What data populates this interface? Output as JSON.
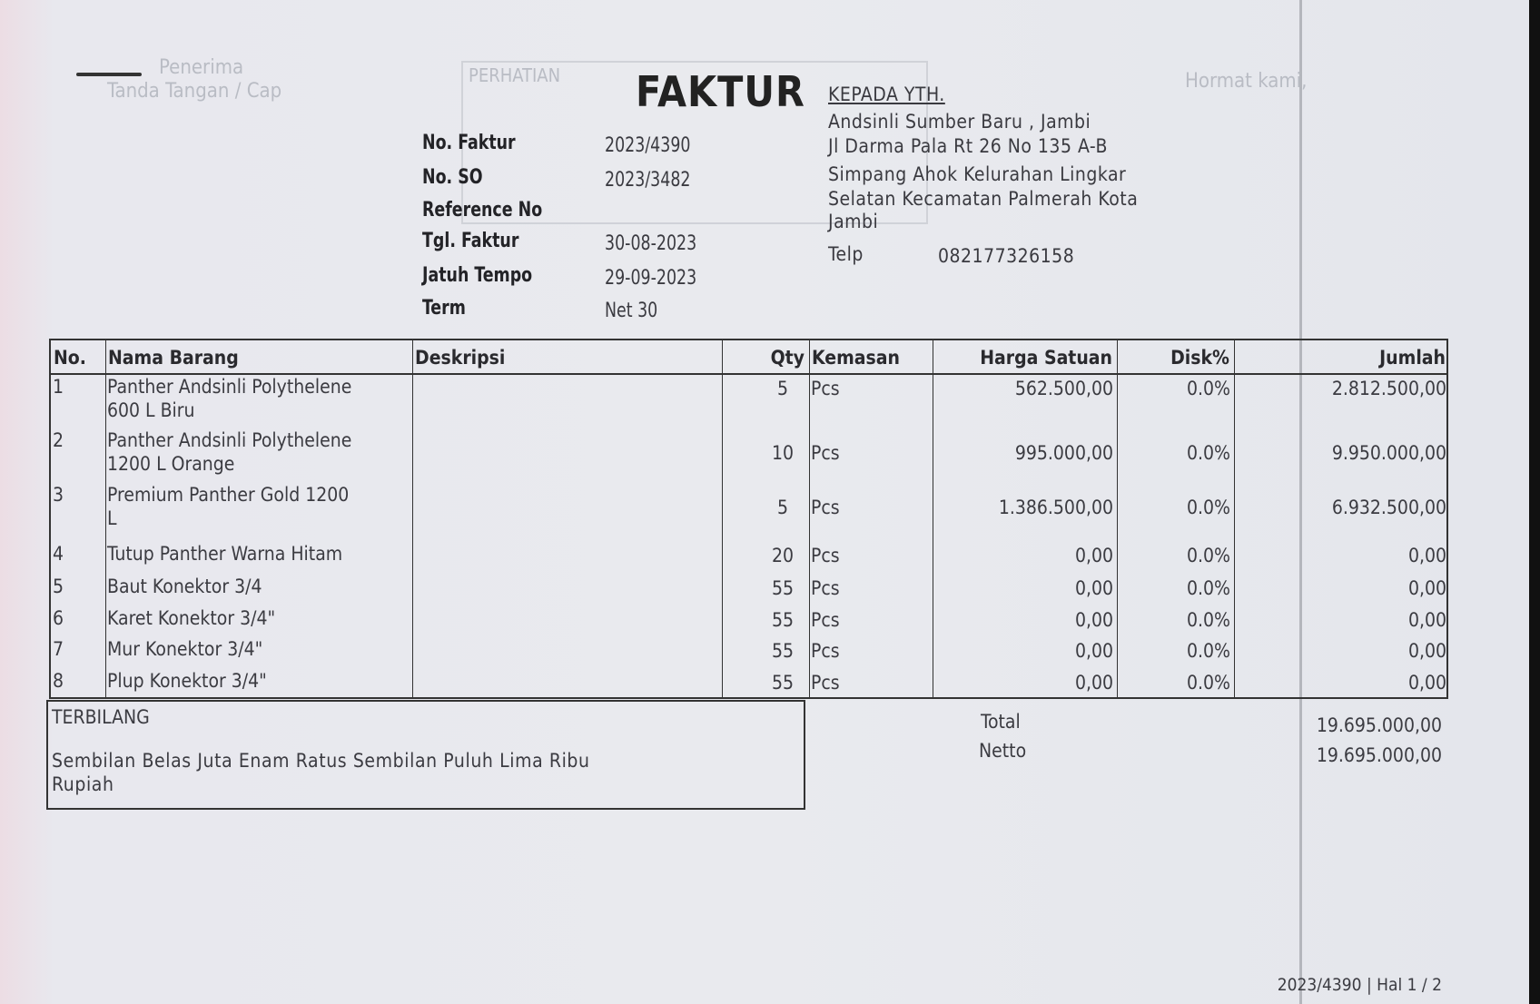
{
  "background_marks": {
    "receiver_label": "Penerima",
    "signature_label": "Tanda Tangan / Cap",
    "notice_label": "PERHATIAN",
    "regards_label": "Hormat kami,"
  },
  "header": {
    "title": "FAKTUR",
    "fields": [
      {
        "label": "No. Faktur",
        "value": "2023/4390"
      },
      {
        "label": "No. SO",
        "value": "2023/3482"
      },
      {
        "label": "Reference No",
        "value": ""
      },
      {
        "label": "Tgl. Faktur",
        "value": "30-08-2023"
      },
      {
        "label": "Jatuh Tempo",
        "value": "29-09-2023"
      },
      {
        "label": "Term",
        "value": "Net 30"
      }
    ]
  },
  "recipient": {
    "heading": "KEPADA YTH.",
    "lines": [
      "Andsinli Sumber Baru , Jambi",
      "Jl Darma Pala Rt 26 No 135 A-B",
      "Simpang Ahok Kelurahan Lingkar",
      "Selatan Kecamatan Palmerah Kota",
      "Jambi"
    ],
    "phone_label": "Telp",
    "phone": "082177326158"
  },
  "table": {
    "columns": [
      "No.",
      "Nama Barang",
      "Deskripsi",
      "Qty",
      "Kemasan",
      "Harga Satuan",
      "Disk%",
      "Jumlah"
    ],
    "rows": [
      {
        "no": "1",
        "name1": "Panther Andsinli Polythelene",
        "name2": "600 L Biru",
        "desc": "",
        "qty": "5",
        "unit": "Pcs",
        "price": "562.500,00",
        "disc": "0.0%",
        "total": "2.812.500,00"
      },
      {
        "no": "2",
        "name1": "Panther Andsinli Polythelene",
        "name2": "1200 L Orange",
        "desc": "",
        "qty": "10",
        "unit": "Pcs",
        "price": "995.000,00",
        "disc": "0.0%",
        "total": "9.950.000,00"
      },
      {
        "no": "3",
        "name1": "Premium Panther Gold 1200",
        "name2": "L",
        "desc": "",
        "qty": "5",
        "unit": "Pcs",
        "price": "1.386.500,00",
        "disc": "0.0%",
        "total": "6.932.500,00"
      },
      {
        "no": "4",
        "name1": "Tutup Panther Warna Hitam",
        "name2": "",
        "desc": "",
        "qty": "20",
        "unit": "Pcs",
        "price": "0,00",
        "disc": "0.0%",
        "total": "0,00"
      },
      {
        "no": "5",
        "name1": "Baut Konektor 3/4",
        "name2": "",
        "desc": "",
        "qty": "55",
        "unit": "Pcs",
        "price": "0,00",
        "disc": "0.0%",
        "total": "0,00"
      },
      {
        "no": "6",
        "name1": "Karet Konektor 3/4\"",
        "name2": "",
        "desc": "",
        "qty": "55",
        "unit": "Pcs",
        "price": "0,00",
        "disc": "0.0%",
        "total": "0,00"
      },
      {
        "no": "7",
        "name1": "Mur Konektor 3/4\"",
        "name2": "",
        "desc": "",
        "qty": "55",
        "unit": "Pcs",
        "price": "0,00",
        "disc": "0.0%",
        "total": "0,00"
      },
      {
        "no": "8",
        "name1": "Plup Konektor 3/4\"",
        "name2": "",
        "desc": "",
        "qty": "55",
        "unit": "Pcs",
        "price": "0,00",
        "disc": "0.0%",
        "total": "0,00"
      }
    ]
  },
  "terbilang": {
    "label": "TERBILANG",
    "line1": "Sembilan Belas Juta Enam Ratus Sembilan Puluh Lima Ribu",
    "line2": "Rupiah"
  },
  "summary": {
    "total_label": "Total",
    "total_value": "19.695.000,00",
    "netto_label": "Netto",
    "netto_value": "19.695.000,00"
  },
  "footer": {
    "page_ref": "2023/4390 | Hal 1 / 2"
  }
}
